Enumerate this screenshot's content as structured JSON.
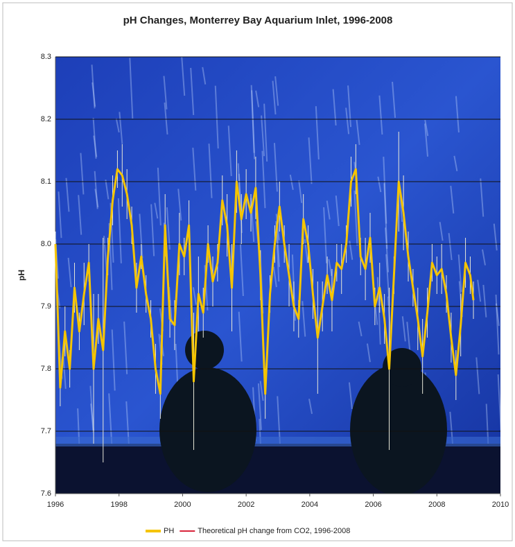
{
  "chart_data": {
    "type": "line",
    "title": "pH Changes, Monterrey Bay Aquarium Inlet, 1996-2008",
    "y_label": "pH",
    "xlim": [
      1996,
      2010
    ],
    "xticks": [
      1996,
      1998,
      2000,
      2002,
      2004,
      2006,
      2008,
      2010
    ],
    "ylim": [
      7.6,
      8.3
    ],
    "yticks": [
      7.6,
      7.7,
      7.8,
      7.9,
      {
        "value": 8,
        "label": "8.0"
      },
      8.1,
      8.2,
      8.3
    ],
    "grid": true,
    "legend": "bottom",
    "series": [
      {
        "name": "PH",
        "color": "#f5c400",
        "x": [
          1996.0,
          1996.15,
          1996.3,
          1996.45,
          1996.6,
          1996.75,
          1996.9,
          1997.05,
          1997.2,
          1997.35,
          1997.5,
          1997.65,
          1997.8,
          1997.95,
          1998.1,
          1998.25,
          1998.4,
          1998.55,
          1998.7,
          1998.85,
          1999.0,
          1999.15,
          1999.3,
          1999.45,
          1999.6,
          1999.75,
          1999.9,
          2000.05,
          2000.2,
          2000.35,
          2000.5,
          2000.65,
          2000.8,
          2000.95,
          2001.1,
          2001.25,
          2001.4,
          2001.55,
          2001.7,
          2001.85,
          2002.0,
          2002.15,
          2002.3,
          2002.45,
          2002.6,
          2002.75,
          2002.9,
          2003.05,
          2003.2,
          2003.35,
          2003.5,
          2003.65,
          2003.8,
          2003.95,
          2004.1,
          2004.25,
          2004.4,
          2004.55,
          2004.7,
          2004.85,
          2005.0,
          2005.15,
          2005.3,
          2005.45,
          2005.6,
          2005.75,
          2005.9,
          2006.05,
          2006.2,
          2006.35,
          2006.5,
          2006.65,
          2006.8,
          2006.95,
          2007.1,
          2007.25,
          2007.4,
          2007.55,
          2007.7,
          2007.85,
          2008.0,
          2008.15,
          2008.3,
          2008.45,
          2008.6,
          2008.75,
          2008.9,
          2009.05,
          2009.15
        ],
        "values": [
          8.0,
          7.77,
          7.86,
          7.8,
          7.93,
          7.86,
          7.92,
          7.97,
          7.8,
          7.88,
          7.83,
          7.98,
          8.07,
          8.12,
          8.11,
          8.08,
          8.03,
          7.93,
          7.98,
          7.92,
          7.88,
          7.8,
          7.76,
          8.03,
          7.88,
          7.87,
          8.0,
          7.98,
          8.03,
          7.78,
          7.92,
          7.89,
          8.0,
          7.94,
          7.97,
          8.07,
          8.03,
          7.93,
          8.1,
          8.04,
          8.08,
          8.05,
          8.09,
          7.95,
          7.76,
          7.92,
          8.0,
          8.06,
          8.0,
          7.95,
          7.9,
          7.88,
          8.04,
          8.0,
          7.92,
          7.85,
          7.9,
          7.95,
          7.91,
          7.97,
          7.96,
          8.0,
          8.1,
          8.12,
          7.98,
          7.96,
          8.01,
          7.9,
          7.93,
          7.88,
          7.8,
          7.95,
          8.1,
          8.05,
          7.98,
          7.93,
          7.88,
          7.82,
          7.89,
          7.97,
          7.95,
          7.96,
          7.92,
          7.85,
          7.79,
          7.87,
          7.97,
          7.95,
          7.91
        ],
        "errors": [
          0.02,
          0.03,
          0.04,
          0.03,
          0.04,
          0.03,
          0.05,
          0.03,
          0.12,
          0.04,
          0.18,
          0.03,
          0.04,
          0.03,
          0.05,
          0.04,
          0.03,
          0.04,
          0.02,
          0.03,
          0.03,
          0.04,
          0.04,
          0.05,
          0.03,
          0.04,
          0.05,
          0.03,
          0.04,
          0.11,
          0.06,
          0.04,
          0.03,
          0.04,
          0.03,
          0.04,
          0.05,
          0.07,
          0.05,
          0.04,
          0.04,
          0.03,
          0.05,
          0.04,
          0.04,
          0.03,
          0.03,
          0.04,
          0.03,
          0.05,
          0.04,
          0.03,
          0.04,
          0.03,
          0.04,
          0.09,
          0.04,
          0.03,
          0.05,
          0.03,
          0.04,
          0.03,
          0.04,
          0.04,
          0.03,
          0.05,
          0.04,
          0.03,
          0.04,
          0.04,
          0.13,
          0.03,
          0.08,
          0.06,
          0.04,
          0.03,
          0.05,
          0.06,
          0.04,
          0.03,
          0.03,
          0.04,
          0.03,
          0.04,
          0.04,
          0.05,
          0.04,
          0.03,
          0.03
        ]
      },
      {
        "name": "Theoretical pH change from CO2, 1996-2008",
        "color": "#d8233a",
        "x": [],
        "values": []
      }
    ]
  }
}
